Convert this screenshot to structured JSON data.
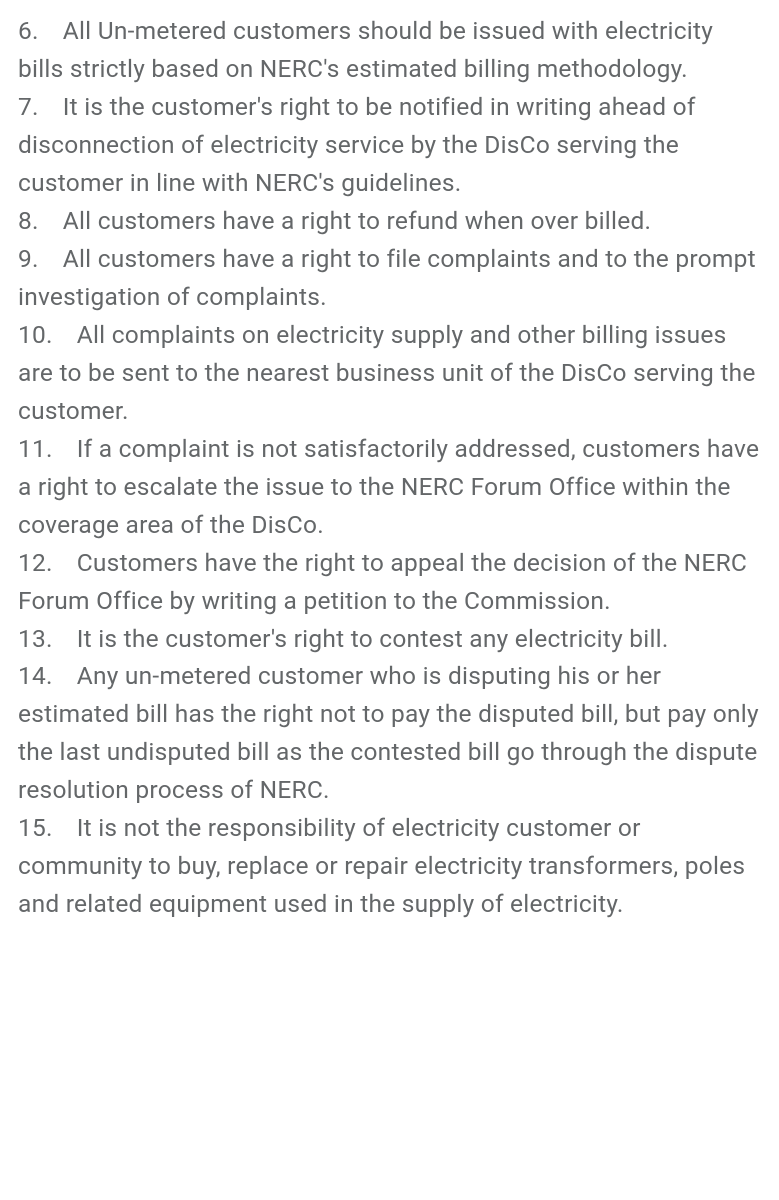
{
  "text_color": "#646769",
  "background_color": "#ffffff",
  "font_size": 24.5,
  "line_height": 1.55,
  "items": [
    {
      "number": "6.",
      "text": "All Un-metered customers should be issued with electricity bills strictly based on NERC's estimated billing methodology."
    },
    {
      "number": "7.",
      "text": "It is the customer's right to be notified in writing ahead of disconnection of electricity service by the DisCo serving the customer in line with NERC's guidelines."
    },
    {
      "number": "8.",
      "text": "All customers have a right to refund when over billed."
    },
    {
      "number": "9.",
      "text": "All customers have a right to file complaints and to the prompt investigation of complaints."
    },
    {
      "number": "10.",
      "text": "All complaints on electricity supply and other billing issues are to be sent to the nearest business unit of the DisCo serving the customer."
    },
    {
      "number": "11.",
      "text": "If a complaint is not satisfactorily addressed, customers have a right to escalate the issue to the NERC Forum Office within the coverage area of the DisCo."
    },
    {
      "number": "12.",
      "text": "Customers have the right to appeal the decision of the NERC Forum Office by writing a petition to the Commission."
    },
    {
      "number": "13.",
      "text": "It is the customer's right to contest any electricity bill."
    },
    {
      "number": "14.",
      "text": "Any un-metered customer who is disputing his or her estimated bill has the right not to pay the disputed bill, but pay only the last undisputed bill as the contested bill go through the dispute resolution process of NERC."
    },
    {
      "number": "15.",
      "text": "It is not the responsibility of electricity customer or community to buy, replace or repair electricity transformers, poles and related equipment used in the supply of electricity."
    }
  ]
}
